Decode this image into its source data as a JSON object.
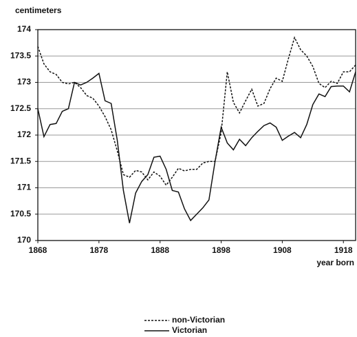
{
  "chart_data": {
    "type": "line",
    "y_label": "centimeters",
    "x_label": "year born",
    "x": [
      1868,
      1869,
      1870,
      1871,
      1872,
      1873,
      1874,
      1875,
      1876,
      1877,
      1878,
      1879,
      1880,
      1881,
      1882,
      1883,
      1884,
      1885,
      1886,
      1887,
      1888,
      1889,
      1890,
      1891,
      1892,
      1893,
      1894,
      1895,
      1896,
      1897,
      1898,
      1899,
      1900,
      1901,
      1902,
      1903,
      1904,
      1905,
      1906,
      1907,
      1908,
      1909,
      1910,
      1911,
      1912,
      1913,
      1914,
      1915,
      1916,
      1917,
      1918,
      1919,
      1920
    ],
    "series": [
      {
        "name": "non-Victorian",
        "color": "#111111",
        "dash": true,
        "values": [
          173.68,
          173.35,
          173.2,
          173.15,
          173.0,
          172.97,
          173.0,
          172.9,
          172.75,
          172.7,
          172.55,
          172.35,
          172.1,
          171.7,
          171.25,
          171.2,
          171.33,
          171.3,
          171.15,
          171.3,
          171.22,
          171.05,
          171.2,
          171.37,
          171.32,
          171.35,
          171.35,
          171.47,
          171.5,
          171.5,
          172.05,
          173.2,
          172.62,
          172.42,
          172.65,
          172.87,
          172.55,
          172.6,
          172.88,
          173.08,
          173.02,
          173.45,
          173.85,
          173.62,
          173.5,
          173.3,
          172.98,
          172.9,
          173.02,
          172.98,
          173.2,
          173.2,
          173.33
        ]
      },
      {
        "name": "Victorian",
        "color": "#111111",
        "dash": false,
        "values": [
          172.5,
          171.97,
          172.2,
          172.22,
          172.45,
          172.5,
          173.0,
          172.95,
          173.0,
          173.08,
          173.17,
          172.65,
          172.6,
          171.9,
          170.95,
          170.33,
          170.9,
          171.12,
          171.25,
          171.58,
          171.6,
          171.35,
          170.95,
          170.92,
          170.6,
          170.38,
          170.5,
          170.62,
          170.77,
          171.5,
          172.15,
          171.85,
          171.72,
          171.92,
          171.8,
          171.95,
          172.07,
          172.18,
          172.23,
          172.15,
          171.9,
          171.98,
          172.05,
          171.95,
          172.2,
          172.58,
          172.78,
          172.73,
          172.92,
          172.93,
          172.93,
          172.82,
          173.2
        ]
      }
    ],
    "xlim": [
      1868,
      1920
    ],
    "xticks": [
      1868,
      1878,
      1888,
      1898,
      1908,
      1918
    ],
    "ylim": [
      170,
      174
    ],
    "yticks": [
      170,
      170.5,
      171,
      171.5,
      172,
      172.5,
      173,
      173.5,
      174
    ],
    "grid": true,
    "legend": "bottom"
  }
}
